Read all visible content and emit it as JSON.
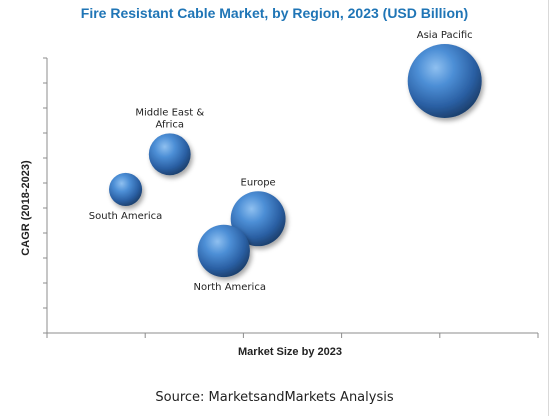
{
  "chart_data": {
    "type": "bubble",
    "title": "Fire Resistant Cable Market, by Region, 2023 (USD Billion)",
    "xlabel": "Market Size by 2023",
    "ylabel": "CAGR (2018-2023)",
    "grid": false,
    "legend": "none",
    "bubble_color": "#2f6db3",
    "series": [
      {
        "name": "",
        "points": [
          {
            "label": "Asia Pacific",
            "x": 4.05,
            "y": 8.6,
            "size": 1.0
          },
          {
            "label": "Middle East & Africa",
            "label_lines": [
              "Middle East &",
              "Africa"
            ],
            "x": 1.25,
            "y": 6.1,
            "size": 0.32
          },
          {
            "label": "South America",
            "x": 0.8,
            "y": 4.9,
            "size": 0.2
          },
          {
            "label": "Europe",
            "x": 2.15,
            "y": 3.9,
            "size": 0.55
          },
          {
            "label": "North America",
            "x": 1.8,
            "y": 2.8,
            "size": 0.5
          }
        ]
      }
    ],
    "xlim": [
      0,
      5
    ],
    "ylim": [
      0,
      10
    ]
  },
  "source": "Source: MarketsandMarkets Analysis"
}
